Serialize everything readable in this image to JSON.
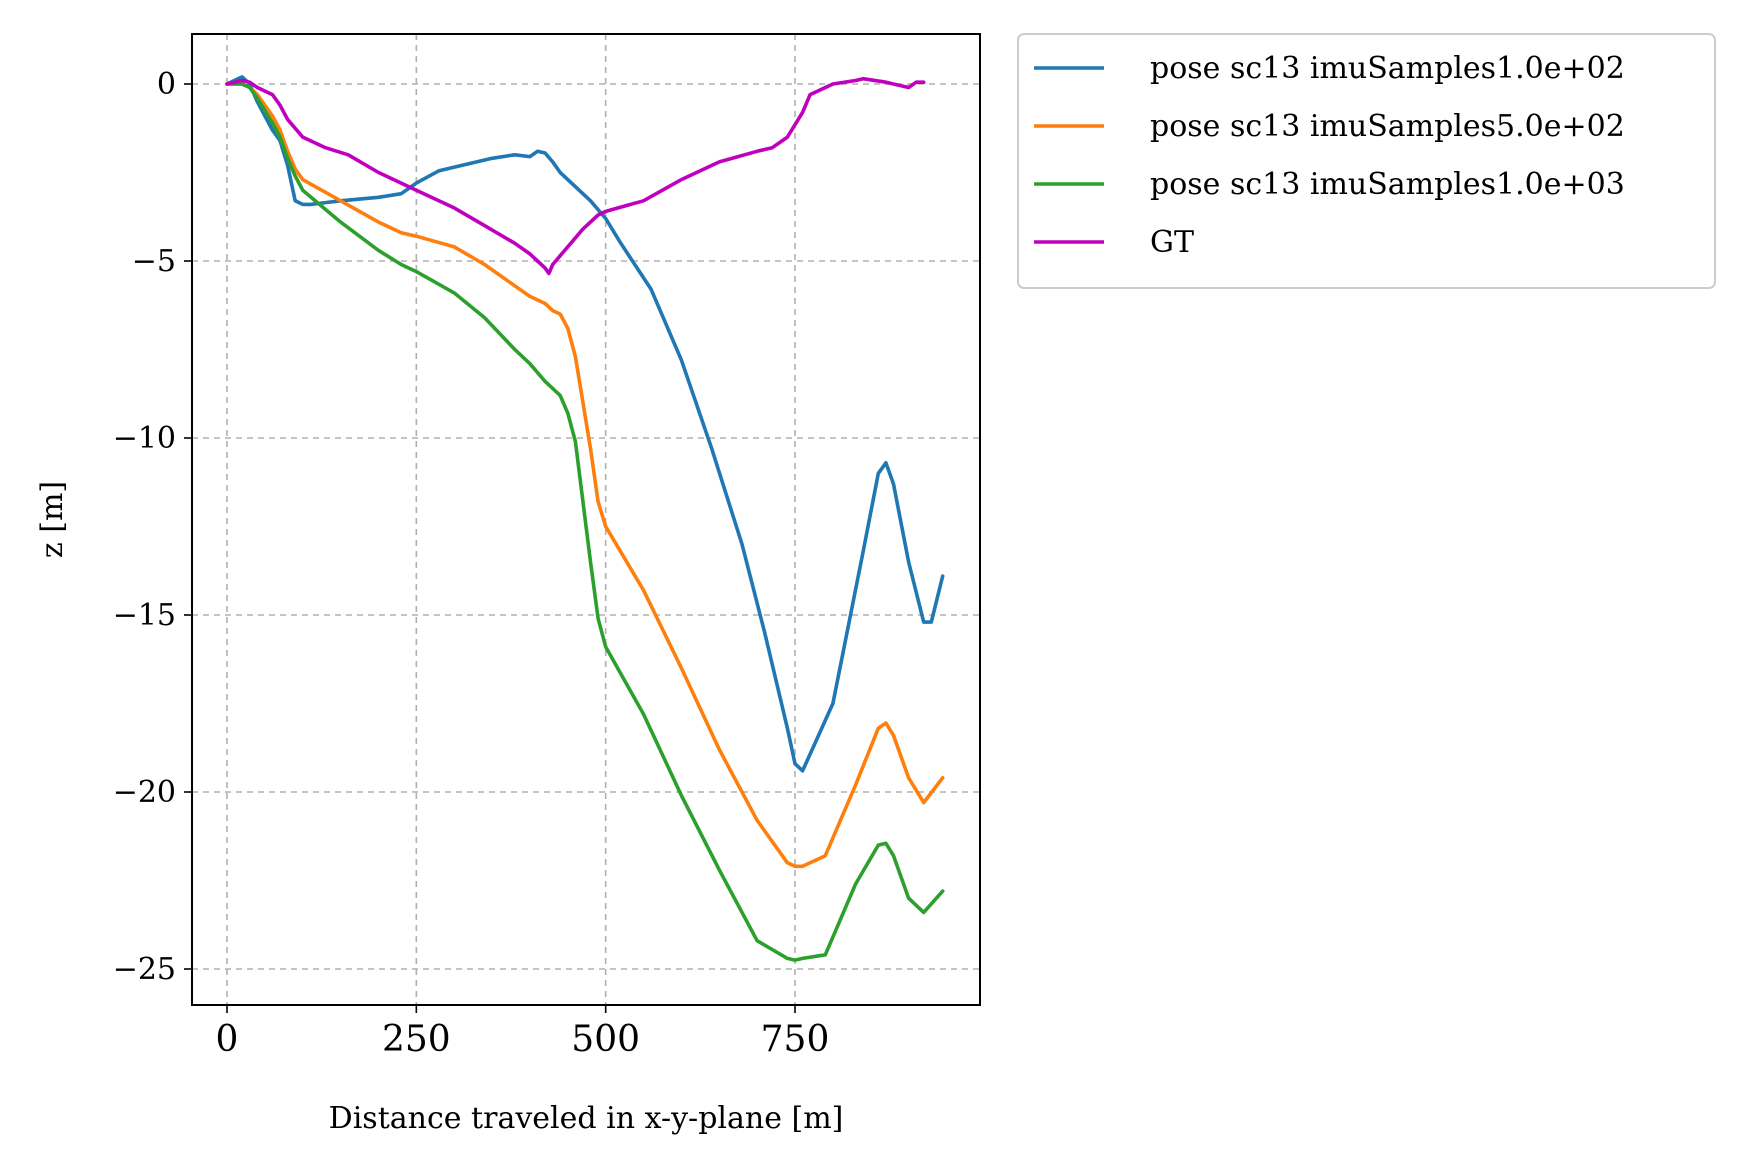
{
  "chart_data": {
    "type": "line",
    "title": "",
    "xlabel": "Distance traveled in x-y-plane [m]",
    "ylabel": "z [m]",
    "xlim": [
      -95,
      1990
    ],
    "ylim": [
      -26,
      1.4
    ],
    "xticks": [
      0,
      250,
      500,
      750
    ],
    "xtick_labels": [
      "0",
      "250",
      "500",
      "750"
    ],
    "yticks": [
      0,
      -5,
      -10,
      -15,
      -20,
      -25
    ],
    "ytick_labels": [
      "0",
      "−5",
      "−10",
      "−15",
      "−20",
      "−25"
    ],
    "grid": true,
    "legend_position": "outside-upper-right",
    "series": [
      {
        "name": "pose sc13 imuSamples1.0e+02",
        "color": "#1f77b4",
        "x": [
          0,
          20,
          30,
          40,
          60,
          70,
          80,
          90,
          100,
          110,
          130,
          150,
          200,
          230,
          250,
          280,
          310,
          350,
          380,
          400,
          410,
          420,
          430,
          440,
          480,
          500,
          520,
          560,
          600,
          640,
          680,
          710,
          740,
          750,
          760,
          800,
          840,
          860,
          870,
          880,
          900,
          920,
          930,
          945
        ],
        "y": [
          0,
          0.2,
          0,
          -0.5,
          -1.3,
          -1.6,
          -2.3,
          -3.3,
          -3.4,
          -3.4,
          -3.35,
          -3.3,
          -3.2,
          -3.1,
          -2.8,
          -2.45,
          -2.3,
          -2.1,
          -2.0,
          -2.05,
          -1.9,
          -1.95,
          -2.2,
          -2.5,
          -3.3,
          -3.8,
          -4.5,
          -5.8,
          -7.8,
          -10.3,
          -13.0,
          -15.5,
          -18.2,
          -19.2,
          -19.4,
          -17.5,
          -13.2,
          -11.0,
          -10.7,
          -11.3,
          -13.5,
          -15.2,
          -15.2,
          -13.9
        ]
      },
      {
        "name": "pose sc13 imuSamples5.0e+02",
        "color": "#ff7f0e",
        "x": [
          0,
          20,
          30,
          40,
          60,
          70,
          80,
          90,
          100,
          150,
          200,
          230,
          250,
          300,
          340,
          380,
          400,
          420,
          430,
          440,
          450,
          460,
          480,
          490,
          500,
          550,
          600,
          650,
          700,
          740,
          750,
          760,
          790,
          830,
          860,
          870,
          880,
          900,
          920,
          945
        ],
        "y": [
          0,
          0,
          -0.1,
          -0.3,
          -0.9,
          -1.3,
          -1.9,
          -2.4,
          -2.7,
          -3.3,
          -3.9,
          -4.2,
          -4.3,
          -4.6,
          -5.1,
          -5.7,
          -6.0,
          -6.2,
          -6.4,
          -6.5,
          -6.9,
          -7.7,
          -10.3,
          -11.8,
          -12.5,
          -14.3,
          -16.5,
          -18.8,
          -20.8,
          -22.0,
          -22.1,
          -22.1,
          -21.8,
          -19.8,
          -18.2,
          -18.05,
          -18.4,
          -19.6,
          -20.3,
          -19.6
        ]
      },
      {
        "name": "pose sc13 imuSamples1.0e+03",
        "color": "#2ca02c",
        "x": [
          0,
          20,
          30,
          40,
          60,
          70,
          80,
          90,
          100,
          150,
          200,
          230,
          250,
          300,
          340,
          380,
          400,
          420,
          430,
          440,
          450,
          460,
          480,
          490,
          500,
          550,
          600,
          650,
          700,
          740,
          750,
          760,
          790,
          830,
          860,
          870,
          880,
          900,
          920,
          945
        ],
        "y": [
          0,
          0,
          -0.1,
          -0.4,
          -1.1,
          -1.5,
          -2.1,
          -2.6,
          -3.0,
          -3.9,
          -4.7,
          -5.1,
          -5.3,
          -5.9,
          -6.6,
          -7.5,
          -7.9,
          -8.4,
          -8.6,
          -8.8,
          -9.3,
          -10.1,
          -13.5,
          -15.1,
          -15.9,
          -17.8,
          -20.1,
          -22.2,
          -24.2,
          -24.7,
          -24.75,
          -24.7,
          -24.6,
          -22.6,
          -21.5,
          -21.45,
          -21.8,
          -23.0,
          -23.4,
          -22.8
        ]
      },
      {
        "name": "GT",
        "color": "#bf00bf",
        "x": [
          0,
          20,
          30,
          40,
          60,
          70,
          80,
          100,
          130,
          160,
          200,
          250,
          300,
          340,
          380,
          400,
          410,
          420,
          425,
          430,
          450,
          470,
          490,
          500,
          550,
          600,
          650,
          700,
          720,
          740,
          760,
          770,
          800,
          830,
          840,
          870,
          900,
          910,
          920
        ],
        "y": [
          0,
          0.1,
          0.05,
          -0.1,
          -0.3,
          -0.6,
          -1.0,
          -1.5,
          -1.8,
          -2.0,
          -2.5,
          -3.0,
          -3.5,
          -4.0,
          -4.5,
          -4.8,
          -5.0,
          -5.2,
          -5.35,
          -5.1,
          -4.6,
          -4.1,
          -3.7,
          -3.6,
          -3.3,
          -2.7,
          -2.2,
          -1.9,
          -1.8,
          -1.5,
          -0.8,
          -0.3,
          0,
          0.1,
          0.15,
          0.05,
          -0.1,
          0.05,
          0.05
        ]
      }
    ]
  }
}
